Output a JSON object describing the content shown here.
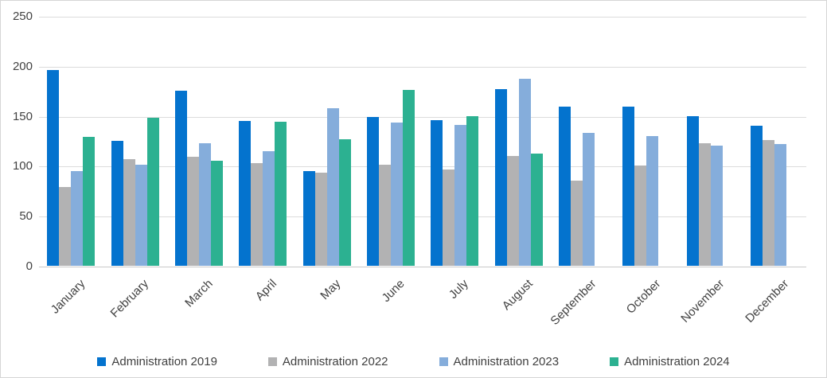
{
  "chart_data": {
    "type": "bar",
    "title": "",
    "xlabel": "",
    "ylabel": "",
    "categories": [
      "January",
      "February",
      "March",
      "April",
      "May",
      "June",
      "July",
      "August",
      "September",
      "October",
      "November",
      "December"
    ],
    "series": [
      {
        "name": "Administration 2019",
        "color": "#0473ce",
        "values": [
          196,
          125,
          175,
          145,
          95,
          149,
          146,
          177,
          159,
          159,
          150,
          140
        ]
      },
      {
        "name": "Administration 2022",
        "color": "#b2b2b3",
        "values": [
          79,
          107,
          109,
          103,
          93,
          101,
          96,
          110,
          85,
          100,
          123,
          126
        ]
      },
      {
        "name": "Administration 2023",
        "color": "#85addb",
        "values": [
          95,
          101,
          123,
          115,
          158,
          143,
          141,
          187,
          133,
          130,
          120,
          122
        ]
      },
      {
        "name": "Administration 2024",
        "color": "#2cb191",
        "values": [
          129,
          148,
          105,
          144,
          127,
          176,
          150,
          112,
          null,
          null,
          null,
          null
        ]
      }
    ],
    "ylim": [
      0,
      250
    ],
    "yticks": [
      0,
      50,
      100,
      150,
      200,
      250
    ],
    "grid": true,
    "legend_position": "bottom",
    "theme": {
      "gridline_color": "#dcdcdc",
      "axis_line_color": "#c8c8c8",
      "tick_text_color": "#424242",
      "legend_text_color": "#404040",
      "background": "#ffffff",
      "border_color": "#d6d6d6"
    }
  }
}
